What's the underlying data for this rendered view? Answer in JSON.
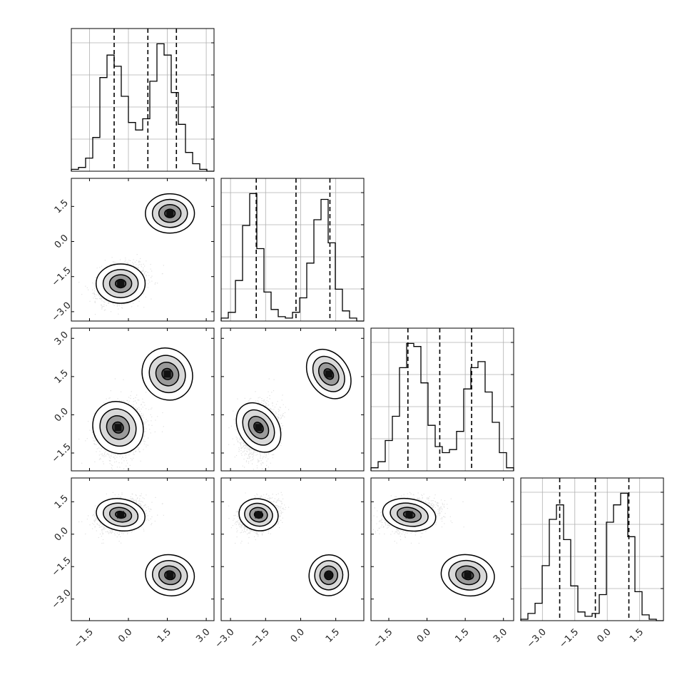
{
  "figure": {
    "type": "corner_plot",
    "n_params": 4
  },
  "colors": {
    "frame": "#000000",
    "grid": "#b0b0b0",
    "contour": "#000000",
    "points": "#000000",
    "background": "#ffffff"
  },
  "params": [
    {
      "range": [
        -2.2,
        3.3
      ],
      "xticks": [
        -1.5,
        0.0,
        1.5,
        3.0
      ],
      "yticks": [],
      "quantiles": [
        -0.55,
        0.75,
        1.85
      ]
    },
    {
      "range": [
        -3.4,
        2.7
      ],
      "xticks": [
        -3.0,
        -1.5,
        0.0,
        1.5
      ],
      "yticks": [
        -3.0,
        -1.5,
        0.0,
        1.5
      ],
      "quantiles": [
        -1.9,
        -0.2,
        1.25
      ]
    },
    {
      "range": [
        -2.2,
        3.4
      ],
      "xticks": [
        -1.5,
        0.0,
        1.5,
        3.0
      ],
      "yticks": [
        -1.5,
        0.0,
        1.5,
        3.0
      ],
      "quantiles": [
        -0.75,
        0.5,
        1.75
      ]
    },
    {
      "range": [
        -4.0,
        2.6
      ],
      "xticks": [
        -3.0,
        -1.5,
        0.0,
        1.5
      ],
      "yticks": [
        -3.0,
        -1.5,
        0.0,
        1.5
      ],
      "quantiles": [
        -2.2,
        -0.55,
        1.0
      ]
    }
  ],
  "chart_data": {
    "type": "heatmap",
    "title": "",
    "xlabel": "",
    "ylabel": "",
    "grid": true,
    "components": [
      {
        "mean": [
          -0.3,
          -1.8,
          -0.6,
          0.9
        ],
        "sd": [
          0.45,
          0.4,
          0.5,
          0.35
        ]
      },
      {
        "mean": [
          1.6,
          1.2,
          1.6,
          -1.9
        ],
        "sd": [
          0.45,
          0.4,
          0.5,
          0.45
        ]
      }
    ],
    "histograms": [
      {
        "param": 1,
        "bin_edges": [
          -2.2,
          3.3
        ],
        "n_bins": 20,
        "counts": [
          1,
          2,
          7,
          18,
          50,
          62,
          56,
          40,
          26,
          22,
          28,
          48,
          68,
          62,
          42,
          25,
          10,
          4,
          1,
          0
        ]
      },
      {
        "param": 2,
        "bin_edges": [
          -3.4,
          2.7
        ],
        "n_bins": 20,
        "counts": [
          2,
          6,
          28,
          66,
          88,
          50,
          20,
          8,
          3,
          2,
          6,
          16,
          40,
          70,
          84,
          54,
          22,
          7,
          2,
          0
        ]
      },
      {
        "param": 3,
        "bin_edges": [
          -2.2,
          3.4
        ],
        "n_bins": 20,
        "counts": [
          2,
          6,
          20,
          36,
          68,
          84,
          82,
          58,
          30,
          16,
          12,
          14,
          26,
          54,
          68,
          72,
          52,
          32,
          12,
          2
        ]
      },
      {
        "param": 4,
        "bin_edges": [
          -4.0,
          2.6
        ],
        "n_bins": 20,
        "counts": [
          1,
          5,
          12,
          38,
          70,
          80,
          56,
          24,
          6,
          3,
          5,
          18,
          68,
          80,
          88,
          58,
          20,
          4,
          1,
          0
        ]
      }
    ],
    "scatter_panels": [
      {
        "x_param": 1,
        "y_param": 2,
        "cluster_centers": [
          [
            -0.3,
            -1.8
          ],
          [
            1.6,
            1.2
          ]
        ]
      },
      {
        "x_param": 1,
        "y_param": 3,
        "cluster_centers": [
          [
            -0.4,
            -0.5
          ],
          [
            1.5,
            1.6
          ]
        ]
      },
      {
        "x_param": 2,
        "y_param": 3,
        "cluster_centers": [
          [
            -1.8,
            -0.5
          ],
          [
            1.2,
            1.6
          ]
        ]
      },
      {
        "x_param": 1,
        "y_param": 4,
        "cluster_centers": [
          [
            -0.3,
            0.9
          ],
          [
            1.6,
            -1.9
          ]
        ]
      },
      {
        "x_param": 2,
        "y_param": 4,
        "cluster_centers": [
          [
            -1.8,
            0.9
          ],
          [
            1.2,
            -1.9
          ]
        ]
      },
      {
        "x_param": 3,
        "y_param": 4,
        "cluster_centers": [
          [
            -0.7,
            0.9
          ],
          [
            1.6,
            -1.9
          ]
        ]
      }
    ]
  }
}
